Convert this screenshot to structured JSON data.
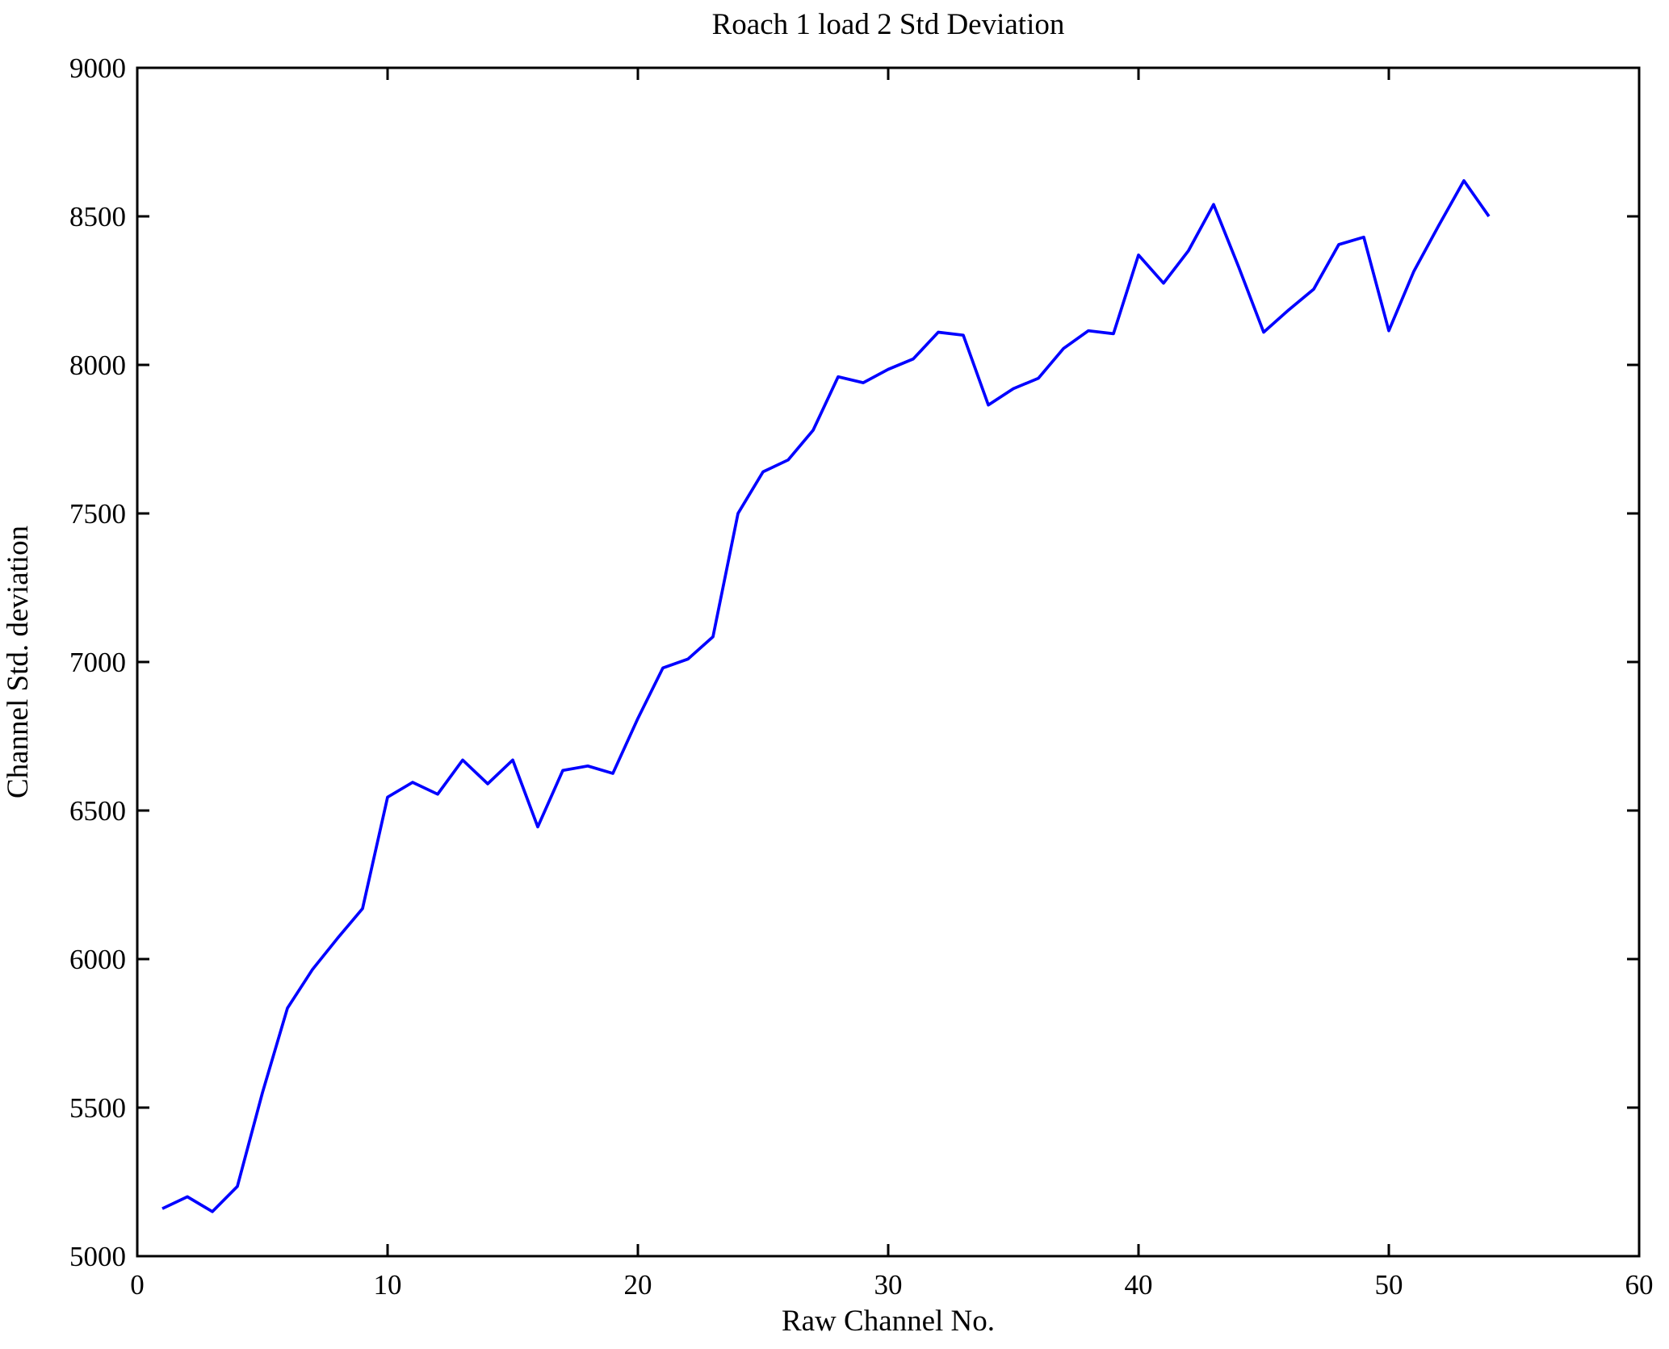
{
  "figure": {
    "title": "Roach 1 load 2 Std Deviation",
    "xlabel": "Raw Channel No.",
    "ylabel": "Channel Std. deviation"
  },
  "chart_data": {
    "type": "line",
    "title": "Roach 1 load 2 Std Deviation",
    "xlabel": "Raw Channel No.",
    "ylabel": "Channel Std. deviation",
    "xlim": [
      0,
      60
    ],
    "ylim": [
      5000,
      9000
    ],
    "xticks": [
      0,
      10,
      20,
      30,
      40,
      50,
      60
    ],
    "yticks": [
      5000,
      5500,
      6000,
      6500,
      7000,
      7500,
      8000,
      8500,
      9000
    ],
    "grid": false,
    "legend_position": "none",
    "line_color": "#0000ff",
    "axis_color": "#000000",
    "series": [
      {
        "name": "channel-std-deviation",
        "x": [
          1,
          2,
          3,
          4,
          5,
          6,
          7,
          8,
          9,
          10,
          11,
          12,
          13,
          14,
          15,
          16,
          17,
          18,
          19,
          20,
          21,
          22,
          23,
          24,
          25,
          26,
          27,
          28,
          29,
          30,
          31,
          32,
          33,
          34,
          35,
          36,
          37,
          38,
          39,
          40,
          41,
          42,
          43,
          44,
          45,
          46,
          47,
          48,
          49,
          50,
          51,
          52,
          53,
          54
        ],
        "values": [
          5160,
          5200,
          5150,
          5235,
          5550,
          5835,
          5965,
          6070,
          6170,
          6545,
          6595,
          6555,
          6670,
          6590,
          6670,
          6445,
          6635,
          6650,
          6625,
          6810,
          6980,
          7010,
          7085,
          7500,
          7640,
          7680,
          7780,
          7960,
          7940,
          7985,
          8020,
          8110,
          8100,
          7865,
          7920,
          7955,
          8055,
          8115,
          8105,
          8370,
          8275,
          8385,
          8540,
          8330,
          8110,
          8185,
          8255,
          8405,
          8430,
          8115,
          8315,
          8470,
          8620,
          8500
        ]
      }
    ]
  }
}
